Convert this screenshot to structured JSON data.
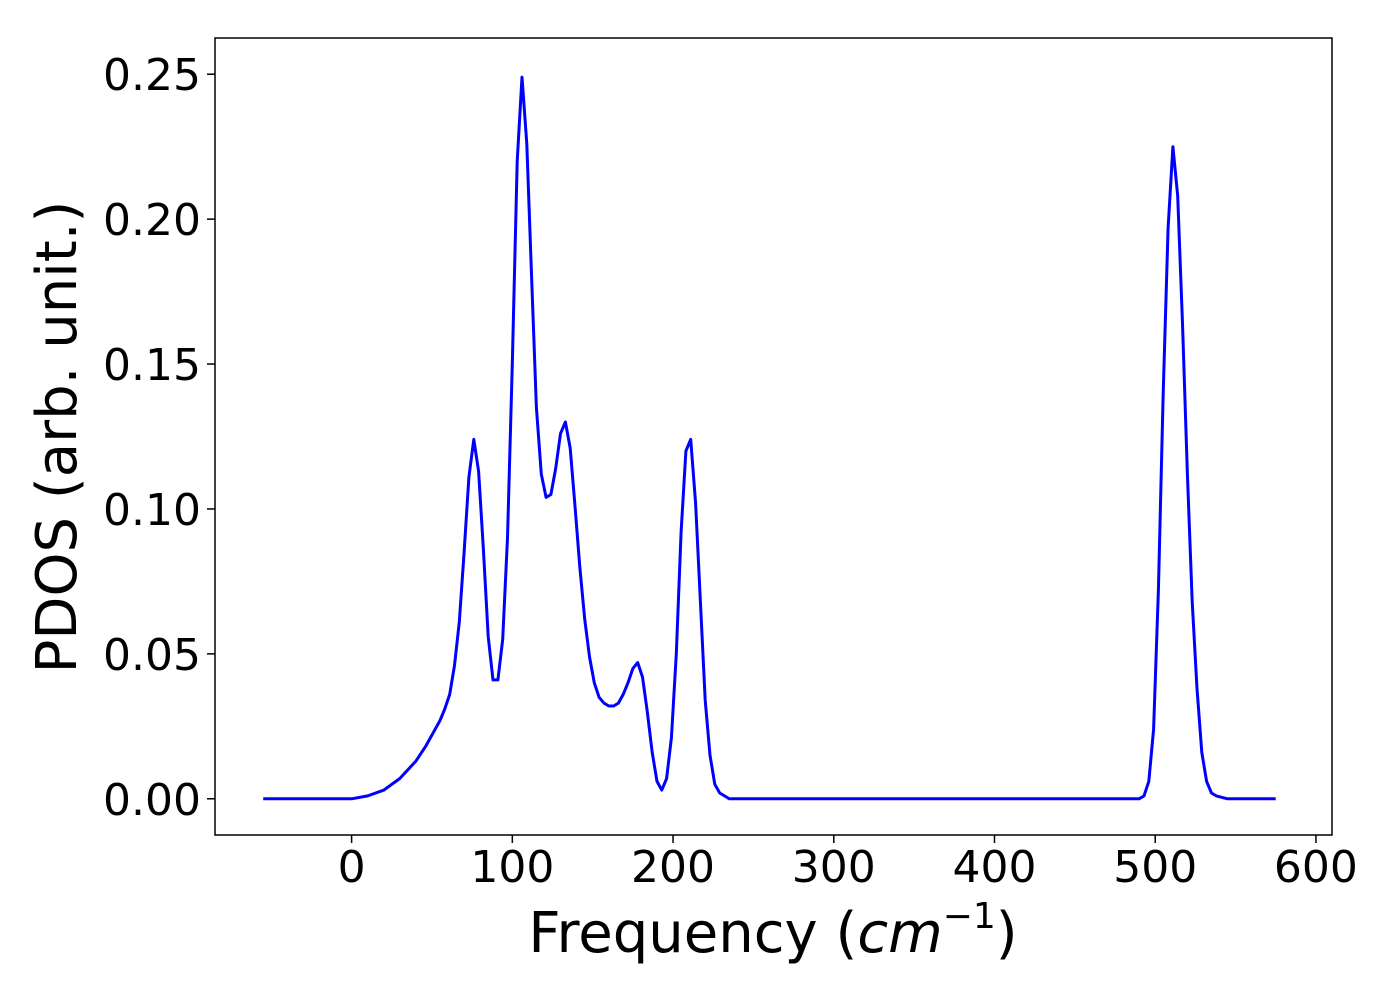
{
  "chart_data": {
    "type": "line",
    "title": "",
    "xlabel": "Frequency (cm⁻¹)",
    "xlabel_main": "Frequency (",
    "xlabel_unit": "cm",
    "xlabel_exp": "−1",
    "xlabel_close": ")",
    "ylabel": "PDOS (arb. unit.)",
    "xlim": [
      -85,
      610
    ],
    "ylim": [
      -0.0125,
      0.2625
    ],
    "xticks": [
      0,
      100,
      200,
      300,
      400,
      500,
      600
    ],
    "yticks": [
      0.0,
      0.05,
      0.1,
      0.15,
      0.2,
      0.25
    ],
    "ytick_labels": [
      "0.00",
      "0.05",
      "0.10",
      "0.15",
      "0.20",
      "0.25"
    ],
    "grid": false,
    "line_color": "#0000ff",
    "series": [
      {
        "x": [
          -55,
          -40,
          -20,
          0,
          10,
          20,
          30,
          40,
          46,
          52,
          55,
          58,
          61,
          64,
          67,
          70,
          73,
          76,
          79,
          82,
          85,
          88,
          91,
          94,
          97,
          100,
          103,
          106,
          109,
          112,
          115,
          118,
          121,
          124,
          127,
          130,
          133,
          136,
          139,
          142,
          145,
          148,
          151,
          154,
          157,
          160,
          163,
          166,
          169,
          172,
          175,
          178,
          181,
          184,
          187,
          190,
          193,
          196,
          199,
          202,
          205,
          208,
          211,
          214,
          217,
          220,
          223,
          226,
          229,
          232,
          235,
          238,
          241,
          245,
          260,
          300,
          400,
          480,
          487,
          490,
          493,
          496,
          499,
          502,
          505,
          508,
          511,
          514,
          517,
          520,
          523,
          526,
          529,
          532,
          535,
          538,
          545,
          560,
          575
        ],
        "y": [
          0.0,
          0.0,
          0.0,
          0.0,
          0.001,
          0.003,
          0.007,
          0.013,
          0.018,
          0.024,
          0.027,
          0.031,
          0.036,
          0.046,
          0.061,
          0.085,
          0.111,
          0.124,
          0.113,
          0.086,
          0.056,
          0.041,
          0.041,
          0.055,
          0.09,
          0.15,
          0.22,
          0.249,
          0.226,
          0.18,
          0.135,
          0.112,
          0.104,
          0.105,
          0.114,
          0.126,
          0.13,
          0.121,
          0.101,
          0.08,
          0.062,
          0.049,
          0.04,
          0.035,
          0.033,
          0.032,
          0.032,
          0.033,
          0.036,
          0.04,
          0.045,
          0.047,
          0.042,
          0.03,
          0.016,
          0.006,
          0.003,
          0.007,
          0.021,
          0.05,
          0.092,
          0.12,
          0.124,
          0.102,
          0.068,
          0.034,
          0.015,
          0.005,
          0.002,
          0.001,
          0.0,
          0.0,
          0.0,
          0.0,
          0.0,
          0.0,
          0.0,
          0.0,
          0.0,
          0.0,
          0.001,
          0.006,
          0.024,
          0.072,
          0.14,
          0.197,
          0.225,
          0.208,
          0.164,
          0.112,
          0.068,
          0.038,
          0.016,
          0.006,
          0.002,
          0.001,
          0.0,
          0.0,
          0.0
        ]
      }
    ]
  }
}
